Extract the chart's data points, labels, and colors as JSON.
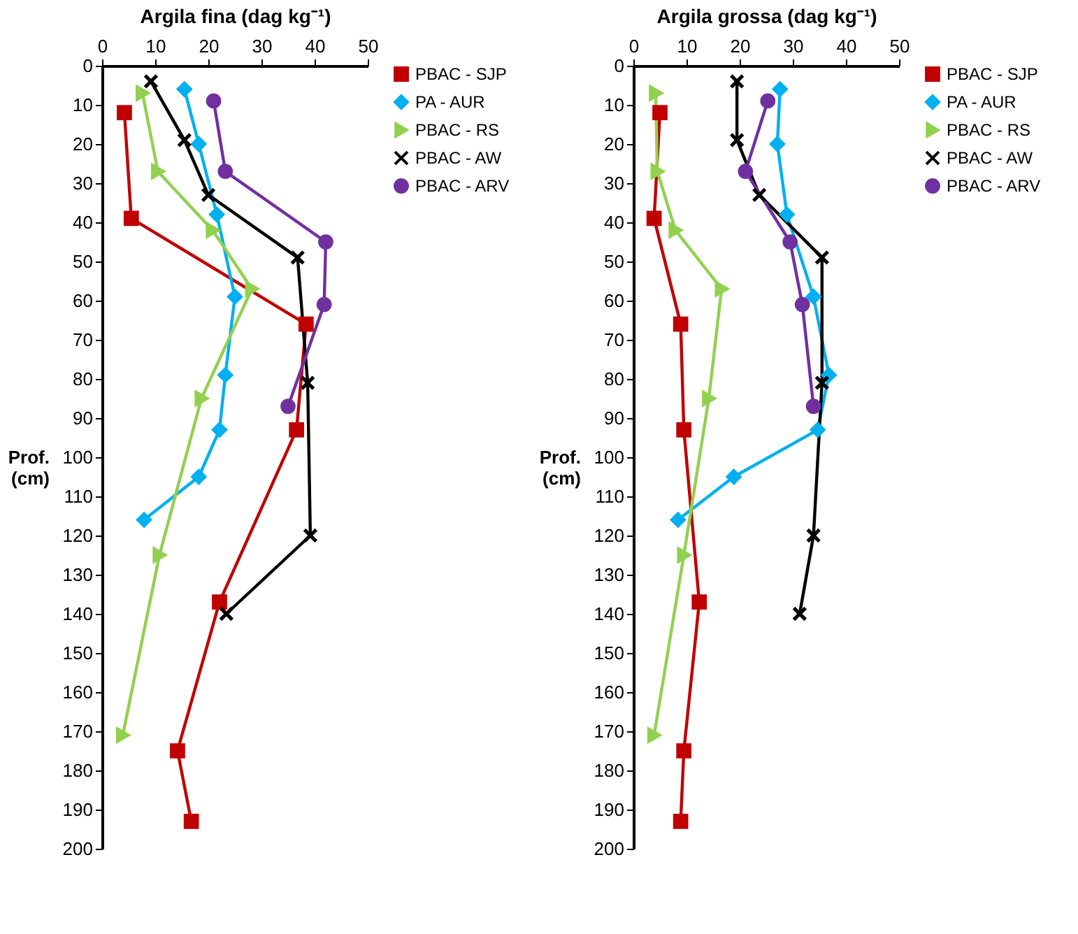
{
  "chart_data": [
    {
      "type": "line",
      "xlabel": "Argila fina (dag kg⁻¹)",
      "ylabel": "Prof. (cm)",
      "xlim": [
        0,
        50
      ],
      "xticks": [
        0,
        10,
        20,
        30,
        40,
        50
      ],
      "ylim": [
        200,
        0
      ],
      "yticks": [
        0,
        10,
        20,
        30,
        40,
        50,
        60,
        70,
        80,
        90,
        100,
        110,
        120,
        130,
        140,
        150,
        160,
        170,
        180,
        190,
        200
      ],
      "grid": false,
      "legend": "right",
      "series": [
        {
          "name": "PBAC - SJP",
          "color": "#c00000",
          "marker": "square",
          "x": [
            4.2,
            5.5,
            38.4,
            36.6,
            22.1,
            14.2,
            16.8
          ],
          "values": [
            12,
            39,
            66,
            93,
            137,
            175,
            193
          ]
        },
        {
          "name": "PA - AUR",
          "color": "#00b0f0",
          "marker": "diamond",
          "x": [
            15.5,
            18.2,
            21.6,
            25.0,
            23.2,
            22.1,
            18.2,
            7.9
          ],
          "values": [
            6,
            20,
            38,
            59,
            79,
            93,
            105,
            116
          ]
        },
        {
          "name": "PBAC - RS",
          "color": "#92d050",
          "marker": "triangle",
          "x": [
            7.6,
            10.5,
            20.8,
            28.2,
            18.7,
            10.8,
            3.9
          ],
          "values": [
            7,
            27,
            42,
            57,
            85,
            125,
            171
          ]
        },
        {
          "name": "PBAC - AW",
          "color": "#000000",
          "marker": "cross",
          "x": [
            9.2,
            15.5,
            20.0,
            36.8,
            38.7,
            39.2,
            23.4
          ],
          "values": [
            4,
            19,
            33,
            49,
            81,
            120,
            140
          ]
        },
        {
          "name": "PBAC - ARV",
          "color": "#7030a0",
          "marker": "circle",
          "x": [
            21.0,
            23.2,
            42.1,
            41.8,
            35.0
          ],
          "values": [
            9,
            27,
            45,
            61,
            87
          ]
        }
      ]
    },
    {
      "type": "line",
      "xlabel": "Argila grossa (dag kg⁻¹)",
      "ylabel": "Prof. (cm)",
      "xlim": [
        0,
        50
      ],
      "xticks": [
        0,
        10,
        20,
        30,
        40,
        50
      ],
      "ylim": [
        200,
        0
      ],
      "yticks": [
        0,
        10,
        20,
        30,
        40,
        50,
        60,
        70,
        80,
        90,
        100,
        110,
        120,
        130,
        140,
        150,
        160,
        170,
        180,
        190,
        200
      ],
      "grid": false,
      "legend": "right",
      "series": [
        {
          "name": "PBAC - SJP",
          "color": "#c00000",
          "marker": "square",
          "x": [
            5.0,
            3.9,
            8.9,
            9.5,
            12.4,
            9.5,
            8.9
          ],
          "values": [
            12,
            39,
            66,
            93,
            137,
            175,
            193
          ]
        },
        {
          "name": "PA - AUR",
          "color": "#00b0f0",
          "marker": "diamond",
          "x": [
            27.6,
            27.1,
            28.9,
            33.9,
            36.8,
            34.7,
            18.9,
            8.4
          ],
          "values": [
            6,
            20,
            38,
            59,
            79,
            93,
            105,
            116
          ]
        },
        {
          "name": "PBAC - RS",
          "color": "#92d050",
          "marker": "triangle",
          "x": [
            4.2,
            4.5,
            7.9,
            16.6,
            14.2,
            9.5,
            3.9
          ],
          "values": [
            7,
            27,
            42,
            57,
            85,
            125,
            171
          ]
        },
        {
          "name": "PBAC - AW",
          "color": "#000000",
          "marker": "cross",
          "x": [
            19.5,
            19.5,
            23.7,
            35.5,
            35.5,
            33.9,
            31.3
          ],
          "values": [
            4,
            19,
            33,
            49,
            81,
            120,
            140
          ]
        },
        {
          "name": "PBAC - ARV",
          "color": "#7030a0",
          "marker": "circle",
          "x": [
            25.3,
            21.1,
            29.5,
            31.8,
            33.9
          ],
          "values": [
            9,
            27,
            45,
            61,
            87
          ]
        }
      ]
    }
  ]
}
